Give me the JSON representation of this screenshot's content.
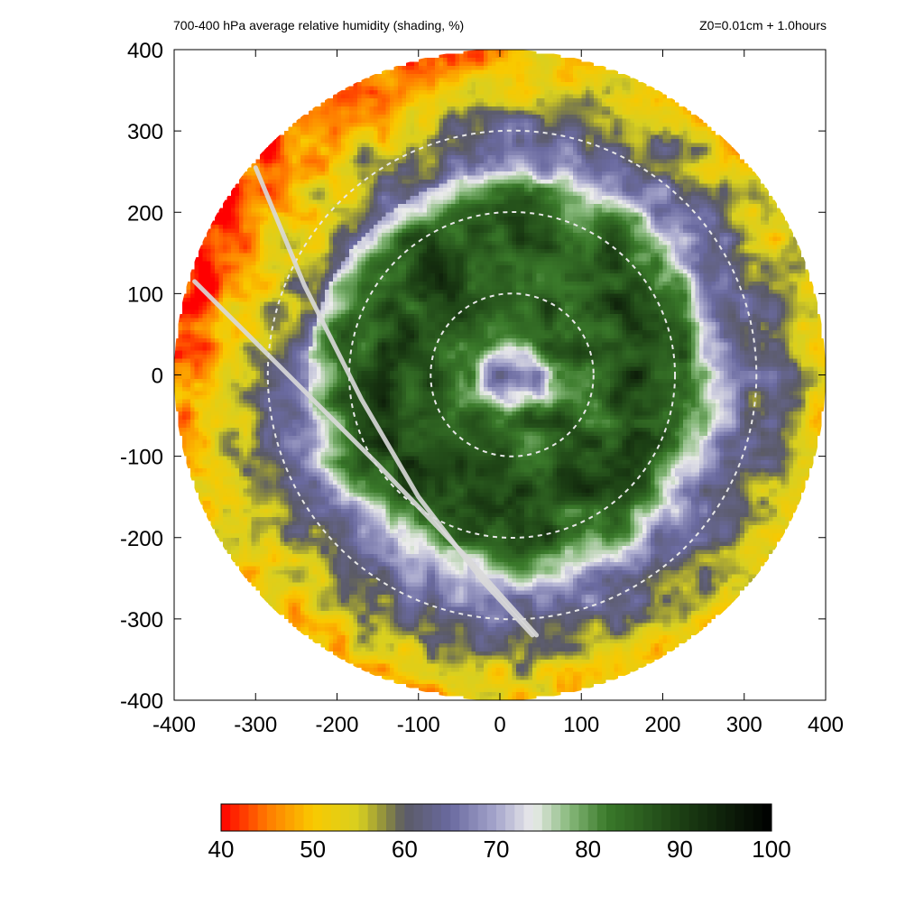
{
  "header": {
    "title": "700-400 hPa average relative humidity (shading, %)",
    "info": "Z0=0.01cm  + 1.0hours"
  },
  "chart_data": {
    "type": "heatmap",
    "title": "700-400 hPa average relative humidity (shading, %)",
    "subtitle": "Z0=0.01cm  + 1.0hours",
    "xlim": [
      -400,
      400
    ],
    "ylim": [
      -400,
      400
    ],
    "xticks": [
      -400,
      -300,
      -200,
      -100,
      0,
      100,
      200,
      300,
      400
    ],
    "yticks": [
      -400,
      -300,
      -200,
      -100,
      0,
      100,
      200,
      300,
      400
    ],
    "xtick_labels": [
      "-400",
      "-300",
      "-200",
      "-100",
      "0",
      "100",
      "200",
      "300",
      "400"
    ],
    "ytick_labels": [
      "-400",
      "-300",
      "-200",
      "-100",
      "0",
      "100",
      "200",
      "300",
      "400"
    ],
    "domain_radius": 400,
    "range_rings": [
      100,
      200,
      300
    ],
    "storm_center": [
      15,
      0
    ],
    "eye_radius": 28,
    "field_profile": [
      {
        "r": 0,
        "rh": 68
      },
      {
        "r": 30,
        "rh": 70
      },
      {
        "r": 50,
        "rh": 82
      },
      {
        "r": 100,
        "rh": 86
      },
      {
        "r": 160,
        "rh": 89
      },
      {
        "r": 210,
        "rh": 85
      },
      {
        "r": 240,
        "rh": 76
      },
      {
        "r": 265,
        "rh": 68
      },
      {
        "r": 300,
        "rh": 63
      },
      {
        "r": 340,
        "rh": 58
      },
      {
        "r": 370,
        "rh": 53
      },
      {
        "r": 400,
        "rh": 50
      }
    ],
    "dry_sectors": [
      {
        "angle_deg": 120,
        "rh_drop": 6
      },
      {
        "angle_deg": 160,
        "rh_drop": 8
      }
    ],
    "tracks": [
      {
        "points": [
          [
            -300,
            255
          ],
          [
            -240,
            110
          ],
          [
            -170,
            -30
          ],
          [
            -100,
            -150
          ],
          [
            -20,
            -255
          ],
          [
            40,
            -320
          ]
        ]
      },
      {
        "points": [
          [
            -375,
            115
          ],
          [
            -320,
            60
          ],
          [
            -250,
            -10
          ],
          [
            -150,
            -110
          ],
          [
            -40,
            -225
          ],
          [
            45,
            -320
          ]
        ]
      }
    ],
    "colorbar": {
      "min": 40,
      "max": 100,
      "ticks": [
        40,
        50,
        60,
        70,
        80,
        90,
        100
      ],
      "tick_labels": [
        "40",
        "50",
        "60",
        "70",
        "80",
        "90",
        "100"
      ],
      "stops": [
        {
          "v": 40,
          "c": "#ff0000"
        },
        {
          "v": 45,
          "c": "#ff7a00"
        },
        {
          "v": 50,
          "c": "#f9c900"
        },
        {
          "v": 55,
          "c": "#d8d020"
        },
        {
          "v": 58,
          "c": "#8a8a40"
        },
        {
          "v": 60,
          "c": "#5a5a66"
        },
        {
          "v": 65,
          "c": "#6a6aa0"
        },
        {
          "v": 70,
          "c": "#a6a6cc"
        },
        {
          "v": 74,
          "c": "#ececec"
        },
        {
          "v": 78,
          "c": "#86b87a"
        },
        {
          "v": 82,
          "c": "#3a7a2a"
        },
        {
          "v": 90,
          "c": "#1c4014"
        },
        {
          "v": 100,
          "c": "#000000"
        }
      ]
    }
  }
}
